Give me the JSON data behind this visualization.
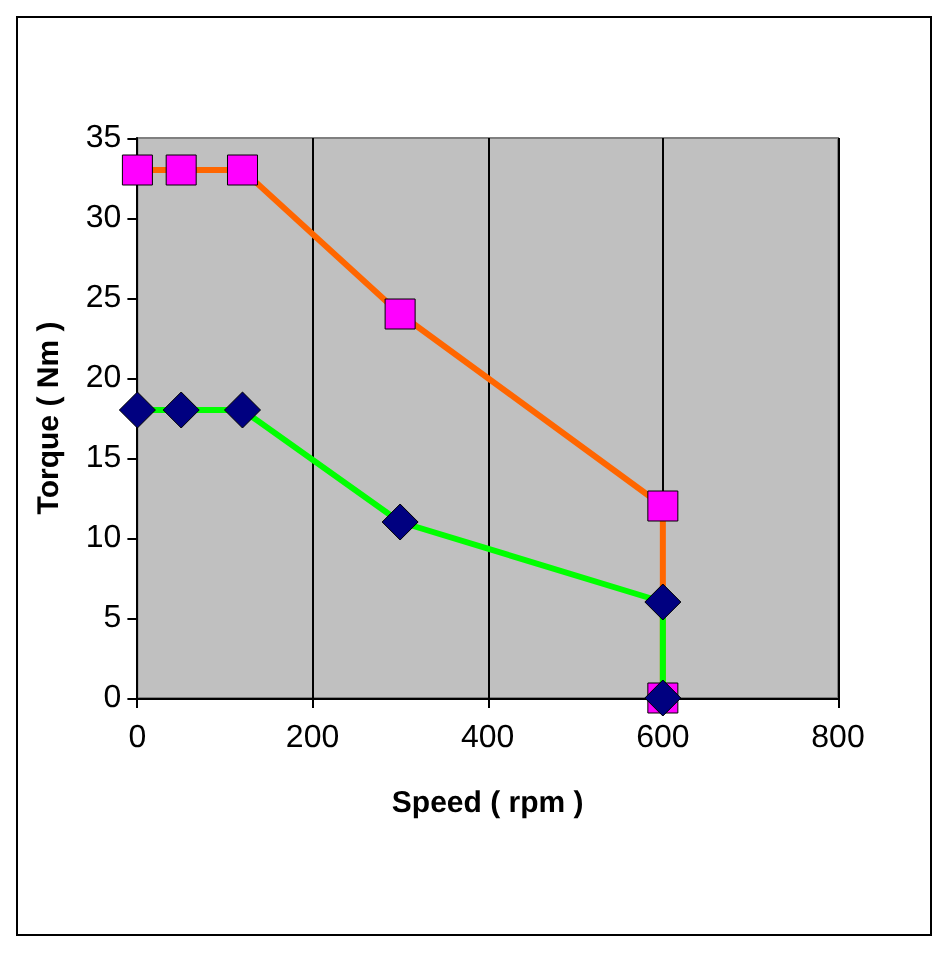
{
  "chart_data": {
    "type": "line",
    "xlabel": "Speed ( rpm )",
    "ylabel": "Torque ( Nm )",
    "xlim": [
      0,
      800
    ],
    "xticks": [
      0,
      200,
      400,
      600,
      800
    ],
    "ylim": [
      0,
      35
    ],
    "yticks": [
      0,
      5,
      10,
      15,
      20,
      25,
      30,
      35
    ],
    "grid": "x",
    "series": [
      {
        "color": "#ff6600",
        "colors": [
          "#ff00ff",
          "#ff00ff",
          "#ff00ff",
          "#ff00ff",
          "#ff00ff",
          "#ff00ff"
        ],
        "marker": "square",
        "x": [
          0,
          50,
          120,
          300,
          600,
          600
        ],
        "values": [
          33,
          33,
          33,
          24,
          12,
          0
        ]
      },
      {
        "color": "#00ff00",
        "colors": [
          "#000080",
          "#000080",
          "#000080",
          "#000080",
          "#000080",
          "#000080"
        ],
        "marker": "diamond",
        "x": [
          0,
          50,
          120,
          300,
          600,
          600
        ],
        "values": [
          18,
          18,
          18,
          11,
          6,
          0
        ]
      }
    ]
  }
}
